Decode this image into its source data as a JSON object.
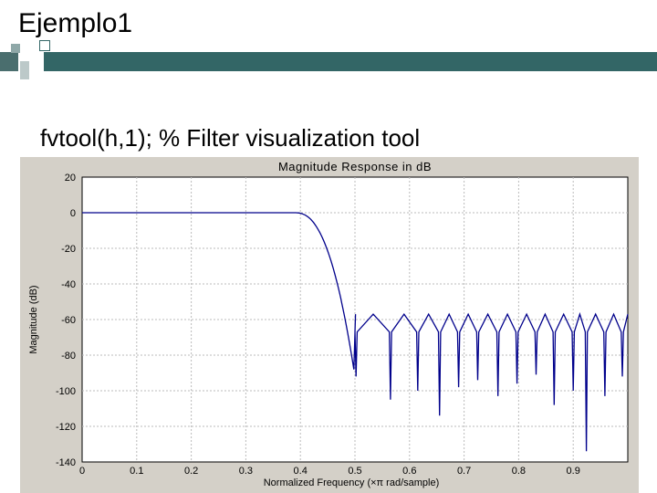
{
  "slide": {
    "title": "Ejemplo1",
    "subtitle": "fvtool(h,1); % Filter visualization tool"
  },
  "colors": {
    "bar": "#336666",
    "curve": "#00008b",
    "plot_bg": "#ffffff",
    "frame_bg": "#d4d0c8"
  },
  "chart_data": {
    "type": "line",
    "title": "Magnitude Response in dB",
    "xlabel": "Normalized Frequency (×π rad/sample)",
    "ylabel": "Magnitude (dB)",
    "xlim": [
      0,
      1
    ],
    "ylim": [
      -140,
      20
    ],
    "xticks": [
      "0",
      "0.1",
      "0.2",
      "0.3",
      "0.4",
      "0.5",
      "0.6",
      "0.7",
      "0.8",
      "0.9"
    ],
    "yticks": [
      "20",
      "0",
      "-20",
      "-40",
      "-60",
      "-80",
      "-100",
      "-120",
      "-140"
    ],
    "grid": true,
    "passband_edge": 0.39,
    "stopband_edge": 0.5,
    "stopband_level": -57,
    "series": [
      {
        "nulls": [
          {
            "x": 0.502,
            "y": -92
          },
          {
            "x": 0.565,
            "y": -105
          },
          {
            "x": 0.615,
            "y": -100
          },
          {
            "x": 0.655,
            "y": -114
          },
          {
            "x": 0.69,
            "y": -98
          },
          {
            "x": 0.725,
            "y": -94
          },
          {
            "x": 0.762,
            "y": -103
          },
          {
            "x": 0.797,
            "y": -96
          },
          {
            "x": 0.832,
            "y": -91
          },
          {
            "x": 0.865,
            "y": -108
          },
          {
            "x": 0.9,
            "y": -100
          },
          {
            "x": 0.924,
            "y": -134
          },
          {
            "x": 0.958,
            "y": -103
          },
          {
            "x": 0.99,
            "y": -92
          }
        ]
      }
    ]
  }
}
